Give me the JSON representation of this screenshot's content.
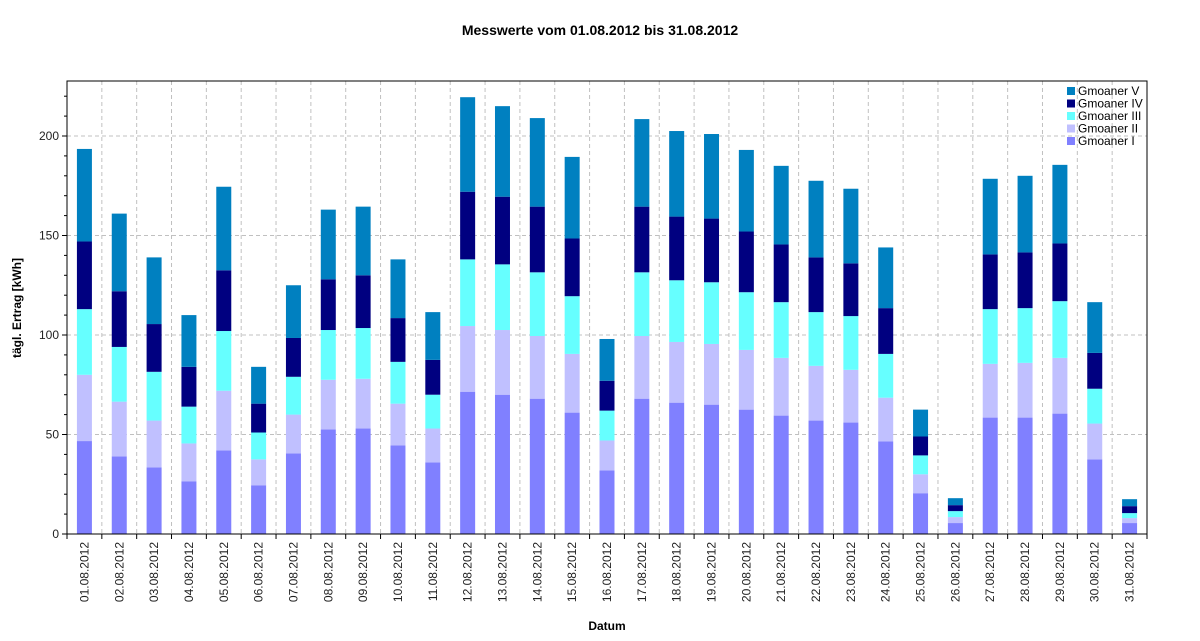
{
  "chart_data": {
    "type": "bar",
    "stacked": true,
    "title": "Messwerte vom 01.08.2012 bis 31.08.2012",
    "xlabel": "Datum",
    "ylabel": "tägl. Ertrag [kWh]",
    "ylim": [
      0,
      225
    ],
    "yticks": [
      0,
      50,
      100,
      150,
      200
    ],
    "grid": true,
    "legend_position": "top-right",
    "categories": [
      "01.08.2012",
      "02.08.2012",
      "03.08.2012",
      "04.08.2012",
      "05.08.2012",
      "06.08.2012",
      "07.08.2012",
      "08.08.2012",
      "09.08.2012",
      "10.08.2012",
      "11.08.2012",
      "12.08.2012",
      "13.08.2012",
      "14.08.2012",
      "15.08.2012",
      "16.08.2012",
      "17.08.2012",
      "18.08.2012",
      "19.08.2012",
      "20.08.2012",
      "21.08.2012",
      "22.08.2012",
      "23.08.2012",
      "24.08.2012",
      "25.08.2012",
      "26.08.2012",
      "27.08.2012",
      "28.08.2012",
      "29.08.2012",
      "30.08.2012",
      "31.08.2012"
    ],
    "series": [
      {
        "name": "Gmoaner I",
        "color": "#8080ff",
        "values": [
          46.7,
          39,
          33.5,
          26.5,
          42,
          24.5,
          40.5,
          52.5,
          53,
          44.5,
          36,
          71.5,
          70,
          68,
          61,
          32,
          68,
          66,
          65,
          62.5,
          59.5,
          57,
          56,
          46.5,
          20.5,
          5.5,
          58.5,
          58.5,
          60.5,
          37.5,
          5.5
        ]
      },
      {
        "name": "Gmoaner II",
        "color": "#c0c0ff",
        "values": [
          33.3,
          27.5,
          23.5,
          19,
          30,
          13,
          19.5,
          25,
          25,
          21,
          17,
          33,
          32.5,
          31.5,
          29.5,
          15,
          31.5,
          30.5,
          30.5,
          30,
          29,
          27.5,
          26.5,
          22,
          9.5,
          3,
          27,
          27.5,
          28,
          18,
          2.5
        ]
      },
      {
        "name": "Gmoaner III",
        "color": "#66ffff",
        "values": [
          33,
          27.5,
          24.5,
          18.5,
          30,
          13.5,
          19,
          25,
          25.5,
          21,
          17,
          33.5,
          33,
          32,
          29,
          15,
          32,
          31,
          31,
          29,
          28,
          27,
          27,
          22,
          9.5,
          3,
          27.5,
          27.5,
          28.5,
          17.5,
          2.5
        ]
      },
      {
        "name": "Gmoaner IV",
        "color": "#000080",
        "values": [
          34,
          28,
          24,
          20,
          30.5,
          14.5,
          19.5,
          25.5,
          26.5,
          22,
          17.5,
          34,
          34,
          33,
          29,
          15,
          33,
          32,
          32,
          30.5,
          29,
          27.5,
          26.5,
          23,
          9.5,
          3,
          27.5,
          28,
          29,
          18,
          3.5
        ]
      },
      {
        "name": "Gmoaner V",
        "color": "#0080c0",
        "values": [
          46.5,
          39,
          33.5,
          26,
          42,
          18.5,
          26.5,
          35,
          34.5,
          29.5,
          24,
          47.5,
          45.5,
          44.5,
          41,
          21,
          44,
          43,
          42.5,
          41,
          39.5,
          38.5,
          37.5,
          30.5,
          13.5,
          3.5,
          38,
          38.5,
          39.5,
          25.5,
          3.5
        ]
      }
    ],
    "totals": [
      193.5,
      161,
      139,
      110,
      174.5,
      84,
      125,
      163,
      164.5,
      138,
      111.5,
      219.5,
      215,
      209,
      189.5,
      98,
      208.5,
      202.5,
      201,
      193,
      185,
      177.5,
      173.5,
      144,
      62.5,
      18,
      178.5,
      180,
      185.5,
      116.5,
      17.5
    ]
  },
  "legend": {
    "items": [
      {
        "label": "Gmoaner V",
        "color": "#0080c0"
      },
      {
        "label": "Gmoaner IV",
        "color": "#000080"
      },
      {
        "label": "Gmoaner III",
        "color": "#66ffff"
      },
      {
        "label": "Gmoaner II",
        "color": "#c0c0ff"
      },
      {
        "label": "Gmoaner I",
        "color": "#8080ff"
      }
    ]
  }
}
